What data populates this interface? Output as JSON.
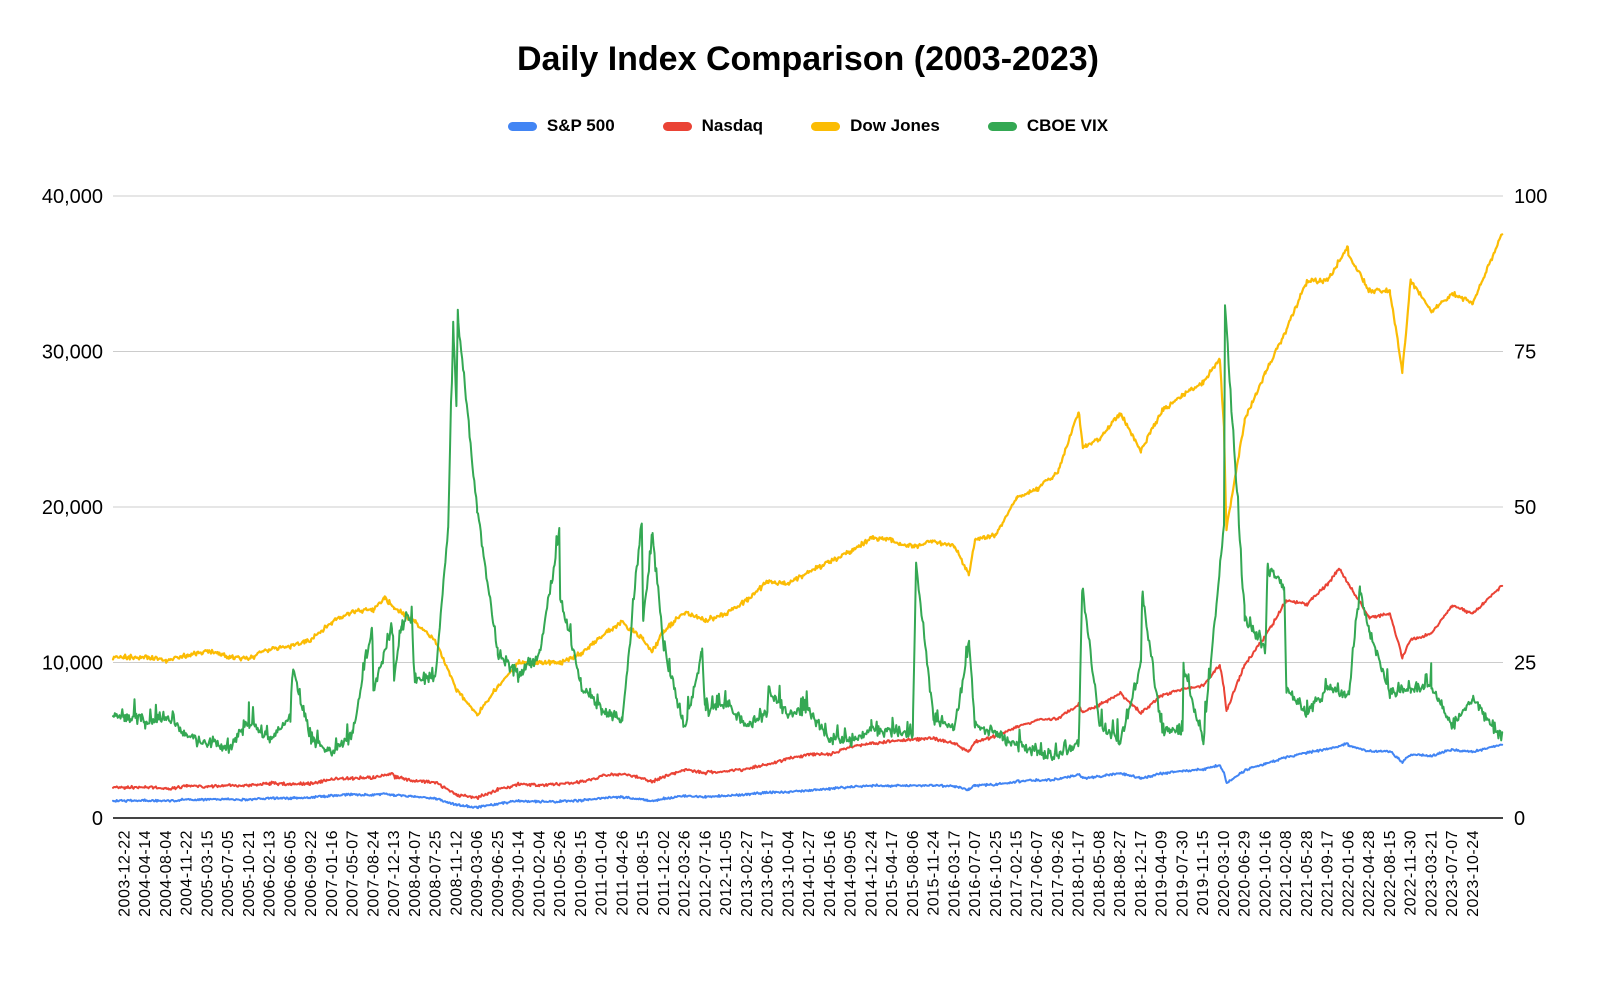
{
  "title": "Daily Index Comparison (2003-2023)",
  "legend": {
    "position": "top",
    "items": [
      {
        "label": "S&P 500",
        "color": "#4285F4"
      },
      {
        "label": "Nasdaq",
        "color": "#EA4335"
      },
      {
        "label": "Dow Jones",
        "color": "#FBBC04"
      },
      {
        "label": "CBOE VIX",
        "color": "#34A853"
      }
    ]
  },
  "colors": {
    "background": "#ffffff",
    "gridline": "#cccccc",
    "axis_line": "#444444",
    "text": "#000000"
  },
  "chart_data": {
    "type": "line",
    "title": "Daily Index Comparison (2003-2023)",
    "grid": true,
    "legend_position": "top",
    "x_label_rotation": -90,
    "left_axis": {
      "min": 0,
      "max": 40000,
      "ticks": [
        "0",
        "10,000",
        "20,000",
        "30,000",
        "40,000"
      ],
      "tick_values": [
        0,
        10000,
        20000,
        30000,
        40000
      ]
    },
    "right_axis": {
      "min": 0,
      "max": 100,
      "ticks": [
        "0",
        "25",
        "50",
        "75",
        "100"
      ],
      "tick_values": [
        0,
        25,
        50,
        75,
        100
      ]
    },
    "categories": [
      "2003-12-22",
      "2004-04-14",
      "2004-08-04",
      "2004-11-22",
      "2005-03-15",
      "2005-07-05",
      "2005-10-21",
      "2006-02-13",
      "2006-06-05",
      "2006-09-22",
      "2007-01-16",
      "2007-05-07",
      "2007-08-24",
      "2007-12-13",
      "2008-04-07",
      "2008-07-25",
      "2008-11-12",
      "2009-03-06",
      "2009-06-25",
      "2009-10-14",
      "2010-02-04",
      "2010-05-26",
      "2010-09-15",
      "2011-01-04",
      "2011-04-26",
      "2011-08-15",
      "2011-12-02",
      "2012-03-26",
      "2012-07-16",
      "2012-11-05",
      "2013-02-27",
      "2013-06-17",
      "2013-10-04",
      "2014-01-27",
      "2014-05-16",
      "2014-09-05",
      "2014-12-24",
      "2015-04-17",
      "2015-08-06",
      "2015-11-24",
      "2016-03-17",
      "2016-07-07",
      "2016-10-25",
      "2017-02-15",
      "2017-06-07",
      "2017-09-26",
      "2018-01-17",
      "2018-05-08",
      "2018-08-27",
      "2018-12-17",
      "2019-04-09",
      "2019-07-30",
      "2019-11-15",
      "2020-03-10",
      "2020-06-29",
      "2020-10-16",
      "2021-02-08",
      "2021-05-28",
      "2021-09-17",
      "2022-01-06",
      "2022-04-28",
      "2022-08-15",
      "2022-11-30",
      "2023-03-21",
      "2023-07-07",
      "2023-10-24"
    ],
    "series": [
      {
        "name": "S&P 500",
        "color": "#4285F4",
        "axis": "left",
        "values": [
          1095,
          1128,
          1098,
          1177,
          1197,
          1204,
          1179,
          1263,
          1265,
          1315,
          1431,
          1509,
          1479,
          1488,
          1372,
          1258,
          852,
          683,
          920,
          1092,
          1063,
          1068,
          1125,
          1270,
          1347,
          1205,
          1244,
          1417,
          1353,
          1417,
          1516,
          1639,
          1690,
          1782,
          1878,
          2008,
          2082,
          2081,
          2083,
          2089,
          2041,
          2098,
          2143,
          2349,
          2433,
          2497,
          2802,
          2672,
          2897,
          2546,
          2878,
          3013,
          3120,
          2882,
          3053,
          3484,
          3916,
          4204,
          4433,
          4696,
          4287,
          4297,
          4080,
          4003,
          4399,
          4247
        ],
        "notable_points": [
          [
            12.55,
            1565
          ],
          [
            25.43,
            1099
          ],
          [
            40.7,
            1829
          ],
          [
            46.2,
            2581
          ],
          [
            52.8,
            3386
          ],
          [
            53.12,
            2237
          ],
          [
            58.97,
            4797
          ],
          [
            61.6,
            3577
          ],
          [
            66.45,
            4770
          ]
        ]
      },
      {
        "name": "Nasdaq",
        "color": "#EA4335",
        "axis": "left",
        "values": [
          1955,
          2024,
          1855,
          2085,
          2034,
          2078,
          2082,
          2239,
          2170,
          2218,
          2498,
          2571,
          2577,
          2668,
          2365,
          2311,
          1499,
          1294,
          1829,
          2172,
          2125,
          2195,
          2301,
          2681,
          2848,
          2555,
          2627,
          3123,
          2896,
          2999,
          3162,
          3452,
          3808,
          4084,
          4091,
          4583,
          4773,
          4932,
          5056,
          5103,
          4775,
          4877,
          5284,
          5819,
          6297,
          6380,
          7298,
          7267,
          8017,
          6754,
          7909,
          8273,
          8541,
          8344,
          9874,
          11672,
          13988,
          13749,
          15044,
          15080,
          12872,
          13128,
          11468,
          11860,
          13661,
          13140
        ],
        "notable_points": [
          [
            12.9,
            2859
          ],
          [
            25.43,
            2336
          ],
          [
            40.7,
            4267
          ],
          [
            46.2,
            6777
          ],
          [
            52.8,
            9817
          ],
          [
            53.12,
            6861
          ],
          [
            58.55,
            16057
          ],
          [
            61.6,
            10321
          ],
          [
            66.45,
            15011
          ]
        ]
      },
      {
        "name": "Dow Jones",
        "color": "#FBBC04",
        "axis": "left",
        "values": [
          10338,
          10377,
          10126,
          10489,
          10745,
          10371,
          10215,
          10892,
          11049,
          11508,
          12583,
          13312,
          13379,
          13518,
          12612,
          11371,
          8282,
          6627,
          8472,
          10015,
          10002,
          9975,
          10572,
          11691,
          12595,
          11482,
          12019,
          13241,
          12727,
          13112,
          13986,
          15180,
          15072,
          15838,
          16491,
          17137,
          18030,
          17826,
          17420,
          17812,
          17481,
          17896,
          18169,
          20611,
          21174,
          22284,
          26116,
          24360,
          26050,
          23593,
          26151,
          27198,
          28005,
          25018,
          25596,
          28606,
          31386,
          34529,
          34585,
          36236,
          33916,
          33912,
          34590,
          32561,
          33735,
          33141
        ],
        "notable_points": [
          [
            12.55,
            14164
          ],
          [
            25.43,
            10655
          ],
          [
            40.7,
            15660
          ],
          [
            46.2,
            23860
          ],
          [
            52.8,
            29551
          ],
          [
            53.12,
            18592
          ],
          [
            58.97,
            36800
          ],
          [
            61.6,
            28725
          ],
          [
            66.45,
            37690
          ]
        ]
      },
      {
        "name": "CBOE VIX",
        "color": "#34A853",
        "axis": "right",
        "values": [
          16.4,
          15.4,
          16.5,
          12.9,
          12.1,
          11.3,
          15.3,
          12.6,
          16.0,
          12.6,
          10.7,
          13.2,
          20.7,
          22.5,
          22.2,
          22.9,
          66.5,
          49.3,
          26.4,
          22.9,
          26.1,
          35.6,
          21.6,
          17.4,
          15.6,
          31.9,
          27.5,
          14.3,
          17.0,
          18.5,
          14.7,
          16.9,
          16.7,
          17.4,
          12.4,
          12.1,
          14.4,
          13.9,
          13.8,
          15.9,
          14.4,
          14.8,
          13.5,
          11.5,
          10.4,
          10.2,
          11.9,
          14.7,
          12.2,
          24.5,
          14.3,
          13.9,
          12.1,
          47.3,
          32.2,
          27.4,
          21.2,
          16.8,
          20.8,
          19.7,
          29.9,
          19.9,
          20.6,
          21.4,
          14.8,
          18.9
        ],
        "notable_points": [
          [
            8.1,
            23.8
          ],
          [
            11.93,
            30.8
          ],
          [
            12.9,
            31.0
          ],
          [
            13.35,
            31.0
          ],
          [
            13.83,
            32.2
          ],
          [
            15.6,
            46.7
          ],
          [
            15.85,
            79.1
          ],
          [
            16.07,
            80.9
          ],
          [
            20.96,
            45.8
          ],
          [
            24.94,
            48.0
          ],
          [
            25.45,
            45.5
          ],
          [
            27.85,
            26.7
          ],
          [
            31.05,
            20.5
          ],
          [
            38.16,
            40.7
          ],
          [
            40.72,
            28.1
          ],
          [
            46.17,
            37.3
          ],
          [
            49.06,
            36.1
          ],
          [
            51.05,
            24.6
          ],
          [
            53.05,
            82.7
          ],
          [
            55.1,
            40.3
          ],
          [
            55.9,
            37.2
          ],
          [
            59.55,
            36.5
          ],
          [
            66.45,
            12.5
          ]
        ]
      }
    ]
  }
}
